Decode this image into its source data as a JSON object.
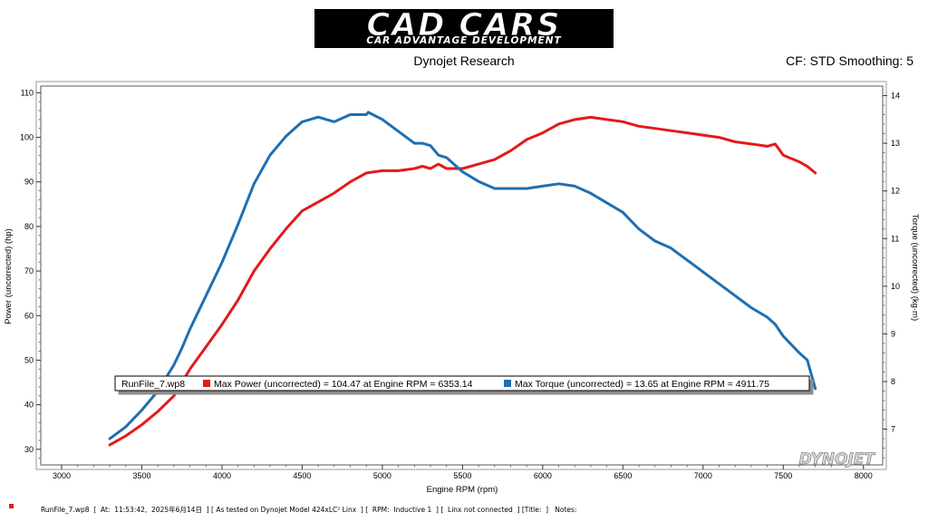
{
  "header": {
    "logo_title": "CAD CARS",
    "logo_tagline": "CAR ADVANTAGE DEVELOPMENT",
    "subtitle": "Dynojet Research",
    "cf_label": "CF: STD Smoothing: 5"
  },
  "watermark": "DYNOJET",
  "footer": {
    "text": "RunFile_7.wp8  [  At:  11:53:42,  2025年6月14日  ] [ As tested on Dynojet Model 424xLC² Linx  ] [  RPM:  Inductive 1  ] [  Linx not connected  ] [Title:  ]   Notes:"
  },
  "legend": {
    "run_name": "RunFile_7.wp8",
    "power_text": "Max Power (uncorrected) = 104.47 at Engine RPM = 6353.14",
    "torque_text": "Max Torque (uncorrected) = 13.65 at Engine RPM = 4911.75"
  },
  "colors": {
    "power": "#e31a1c",
    "torque": "#1f6fb2"
  },
  "chart_data": {
    "type": "line",
    "xlabel": "Engine RPM (rpm)",
    "ylabel": "Power (uncorrected) (hp)",
    "y2label": "Torque (uncorrected) (kg·m)",
    "xlim": [
      2870,
      8120
    ],
    "ylim": [
      26.5,
      111.5
    ],
    "y2lim": [
      6.25,
      14.2
    ],
    "xticks": [
      3000,
      3500,
      4000,
      4500,
      5000,
      5500,
      6000,
      6500,
      7000,
      7500,
      8000
    ],
    "yticks": [
      30,
      40,
      50,
      60,
      70,
      80,
      90,
      100,
      110
    ],
    "y2ticks": [
      7,
      8,
      9,
      10,
      11,
      12,
      13,
      14
    ],
    "grid": false,
    "legend_position": "bottom-center",
    "series": [
      {
        "name": "Max Power (uncorrected)",
        "axis": "left",
        "x": [
          3300,
          3400,
          3500,
          3600,
          3700,
          3750,
          3800,
          3900,
          4000,
          4100,
          4200,
          4300,
          4400,
          4500,
          4600,
          4700,
          4800,
          4900,
          5000,
          5100,
          5200,
          5250,
          5300,
          5350,
          5400,
          5500,
          5600,
          5700,
          5800,
          5900,
          6000,
          6100,
          6200,
          6300,
          6400,
          6500,
          6600,
          6700,
          6800,
          6900,
          7000,
          7100,
          7200,
          7300,
          7400,
          7450,
          7500,
          7600,
          7650,
          7700
        ],
        "y": [
          31,
          33,
          35.5,
          38.5,
          42,
          45,
          48,
          53,
          58,
          63.5,
          70,
          75,
          79.5,
          83.5,
          85.5,
          87.5,
          90,
          92,
          92.5,
          92.5,
          93,
          93.5,
          93,
          94,
          93,
          93,
          94,
          95,
          97,
          99.5,
          101,
          103,
          104,
          104.5,
          104,
          103.5,
          102.5,
          102,
          101.5,
          101,
          100.5,
          100,
          99,
          98.5,
          98,
          98.5,
          96,
          94.5,
          93.5,
          92
        ]
      },
      {
        "name": "Max Torque (uncorrected)",
        "axis": "right",
        "x": [
          3300,
          3400,
          3500,
          3600,
          3700,
          3750,
          3800,
          3900,
          4000,
          4100,
          4200,
          4300,
          4400,
          4500,
          4600,
          4700,
          4800,
          4900,
          4912,
          5000,
          5100,
          5200,
          5250,
          5300,
          5350,
          5400,
          5500,
          5600,
          5700,
          5800,
          5900,
          6000,
          6100,
          6200,
          6300,
          6400,
          6500,
          6600,
          6700,
          6800,
          6900,
          7000,
          7100,
          7200,
          7300,
          7400,
          7450,
          7500,
          7600,
          7650,
          7700
        ],
        "y": [
          6.8,
          7.05,
          7.4,
          7.8,
          8.35,
          8.7,
          9.1,
          9.8,
          10.5,
          11.3,
          12.15,
          12.75,
          13.15,
          13.45,
          13.55,
          13.45,
          13.6,
          13.6,
          13.65,
          13.5,
          13.25,
          13.0,
          13.0,
          12.95,
          12.75,
          12.7,
          12.4,
          12.2,
          12.05,
          12.05,
          12.05,
          12.1,
          12.15,
          12.1,
          11.95,
          11.75,
          11.55,
          11.2,
          10.95,
          10.8,
          10.55,
          10.3,
          10.05,
          9.8,
          9.55,
          9.35,
          9.2,
          8.95,
          8.6,
          8.45,
          7.85
        ]
      }
    ]
  }
}
